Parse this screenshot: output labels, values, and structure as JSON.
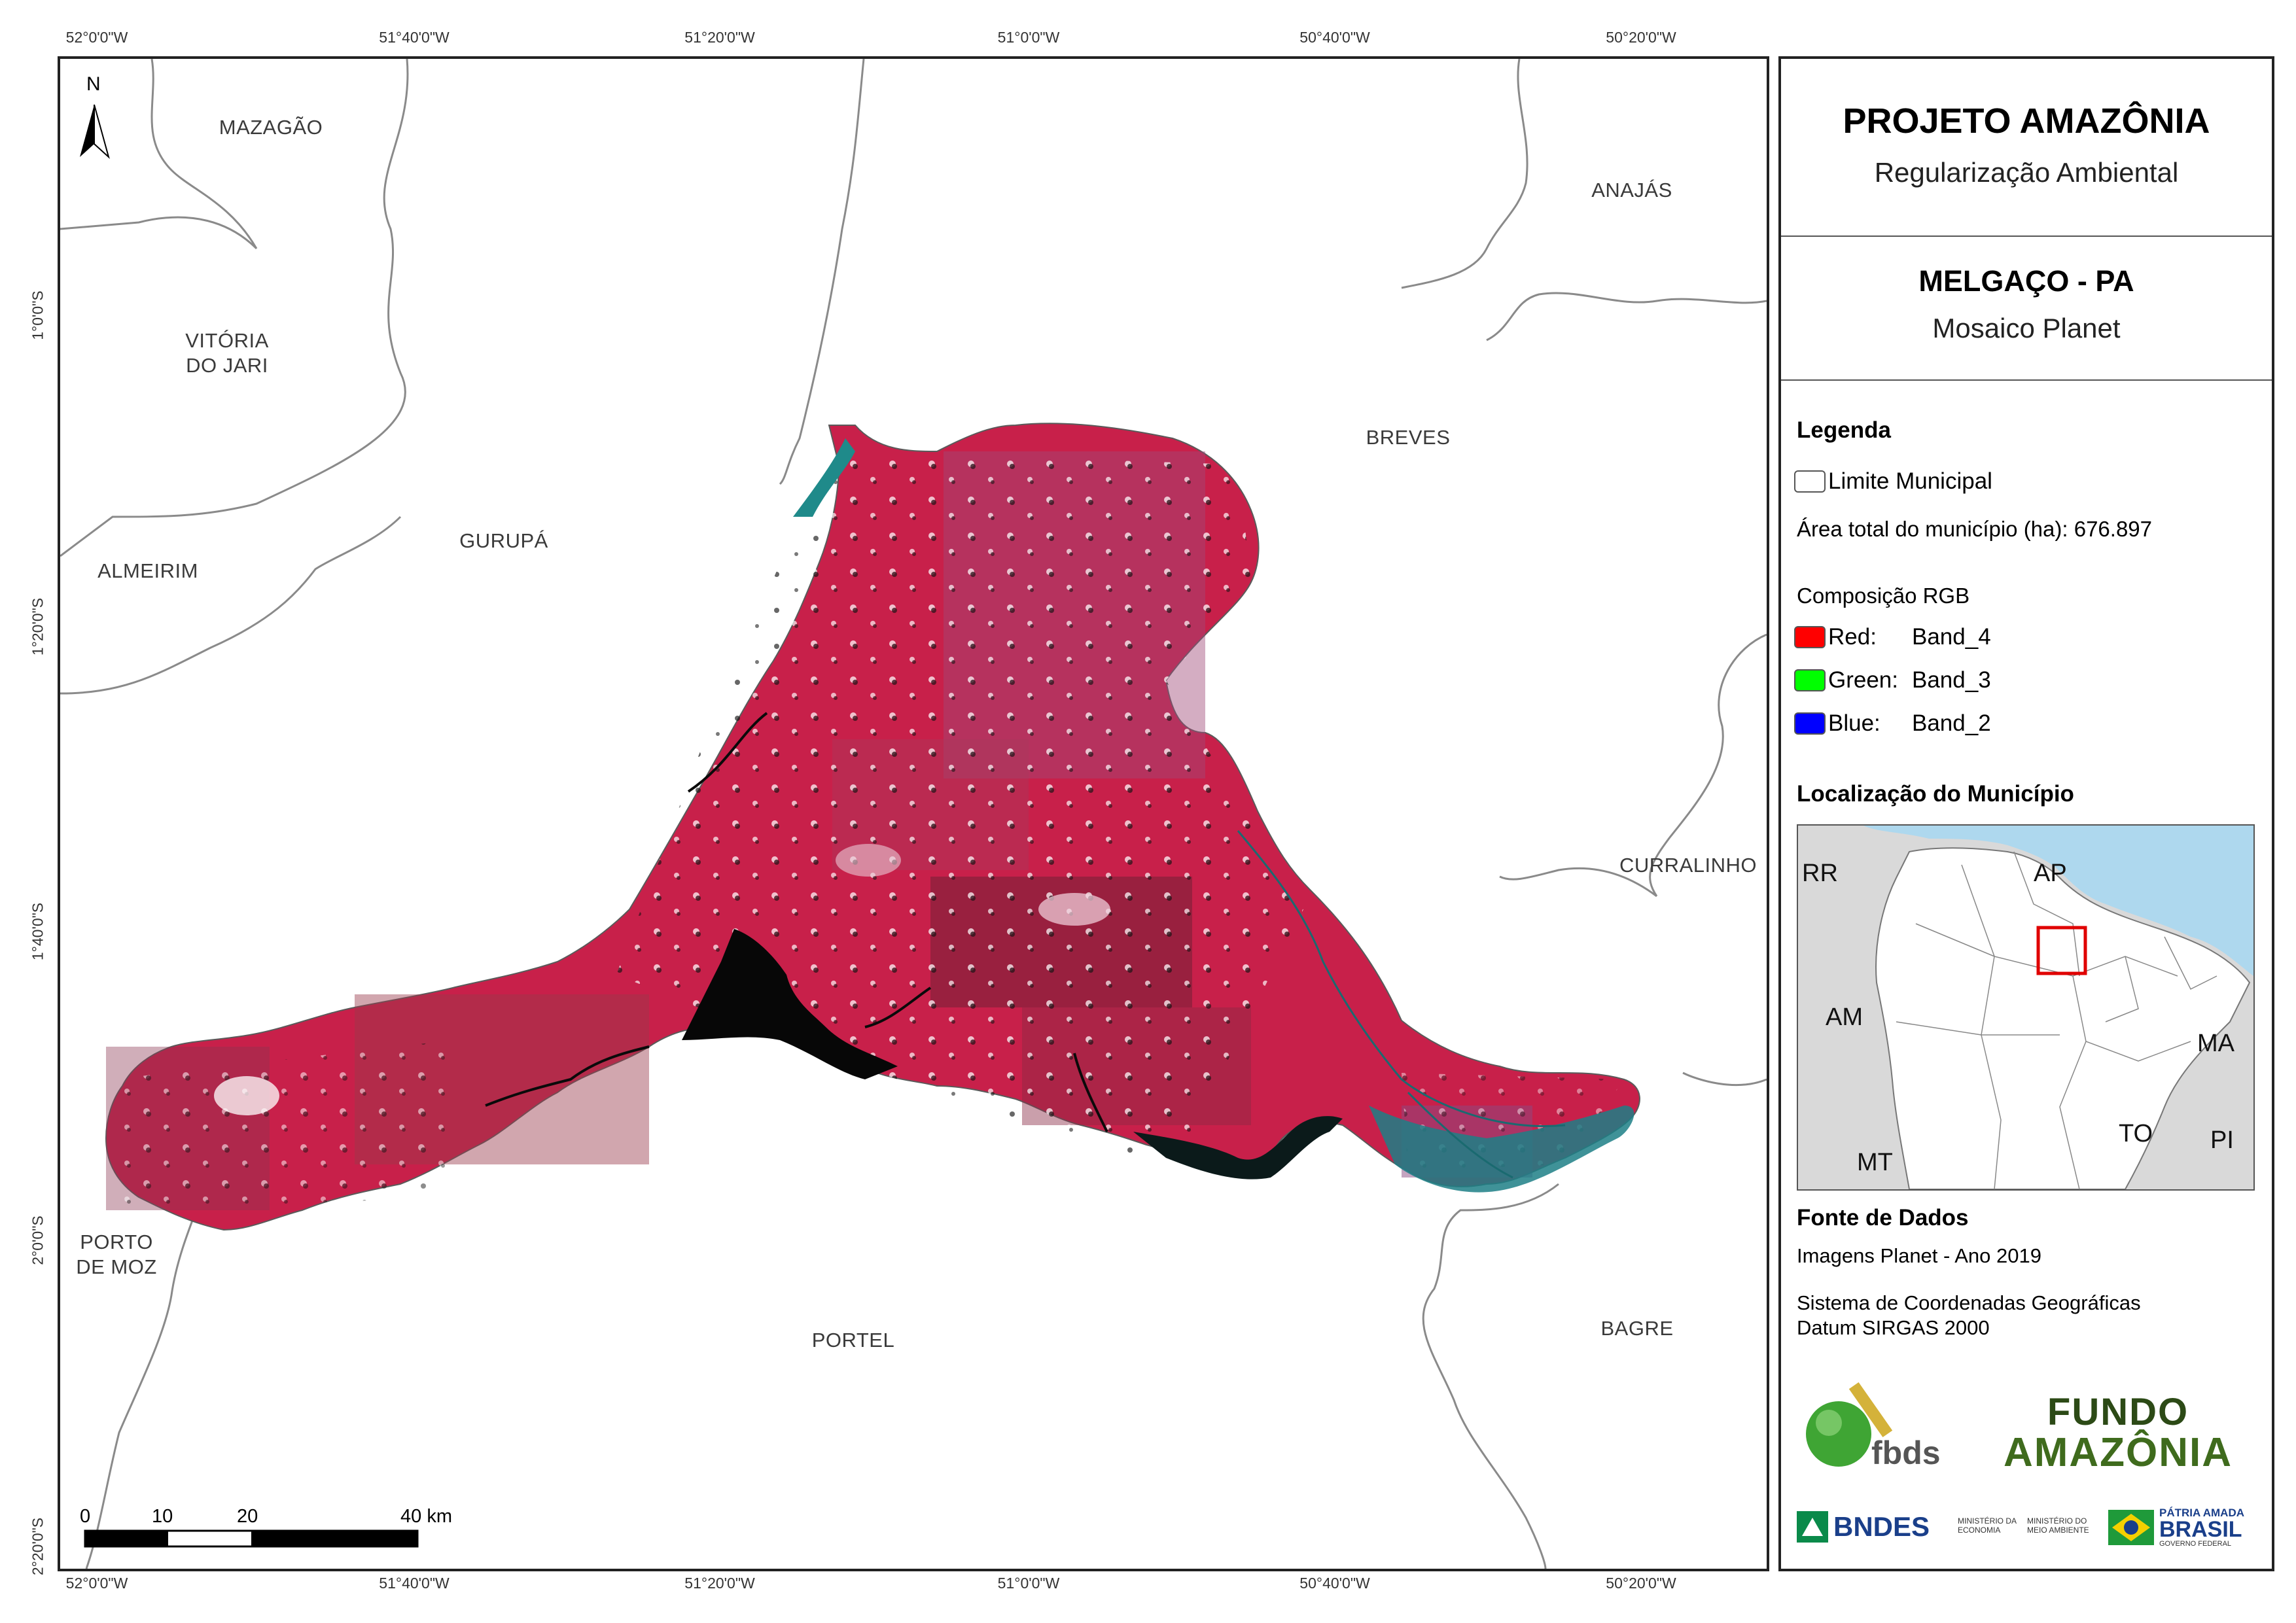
{
  "coords": {
    "top": [
      "52°0'0\"W",
      "51°40'0\"W",
      "51°20'0\"W",
      "51°0'0\"W",
      "50°40'0\"W",
      "50°20'0\"W"
    ],
    "bottom": [
      "52°0'0\"W",
      "51°40'0\"W",
      "51°20'0\"W",
      "51°0'0\"W",
      "50°40'0\"W",
      "50°20'0\"W"
    ],
    "left": [
      "1°0'0\"S",
      "1°20'0\"S",
      "1°40'0\"S",
      "2°0'0\"S",
      "2°20'0\"S"
    ]
  },
  "map": {
    "north": "N",
    "municipalities": {
      "mazagao": "MAZAGÃO",
      "anajas": "ANAJÁS",
      "vitoria_1": "VITÓRIA",
      "vitoria_2": "DO JARI",
      "breves": "BREVES",
      "gurupa": "GURUPÁ",
      "almeirim": "ALMEIRIM",
      "curralinho": "CURRALINHO",
      "porto_1": "PORTO",
      "porto_2": "DE MOZ",
      "portel": "PORTEL",
      "bagre": "BAGRE"
    },
    "scale": {
      "t0": "0",
      "t10": "10",
      "t20": "20",
      "t40": "40 km"
    }
  },
  "panel": {
    "title": "PROJETO AMAZÔNIA",
    "subtitle": "Regularização Ambiental",
    "municipality": "MELGAÇO - PA",
    "mosaic": "Mosaico Planet",
    "legend_heading": "Legenda",
    "limit_label": "Limite Municipal",
    "area_label": "Área total do município (ha): 676.897",
    "rgb_heading": "Composição RGB",
    "bands": [
      {
        "channel": "Red:",
        "band": "Band_4",
        "color": "#ff0000"
      },
      {
        "channel": "Green:",
        "band": "Band_3",
        "color": "#00ff00"
      },
      {
        "channel": "Blue:",
        "band": "Band_2",
        "color": "#0000ff"
      }
    ],
    "location_heading": "Localização do Município",
    "inset": {
      "rr": "RR",
      "ap": "AP",
      "am": "AM",
      "ma": "MA",
      "to": "TO",
      "mt": "MT",
      "pi": "PI"
    },
    "sources_heading": "Fonte de Dados",
    "source_1": "Imagens Planet - Ano 2019",
    "source_2": "Sistema de Coordenadas Geográficas",
    "source_3": "Datum SIRGAS 2000",
    "logos": {
      "fbds": "fbds",
      "fundo_1": "FUNDO",
      "fundo_2": "AMAZÔNIA",
      "bndes": "BNDES",
      "min_eco": "MINISTÉRIO DA ECONOMIA",
      "min_amb": "MINISTÉRIO DO MEIO AMBIENTE",
      "patria_1": "PÁTRIA AMADA",
      "patria_2": "BRASIL",
      "gov": "GOVERNO FEDERAL"
    }
  }
}
